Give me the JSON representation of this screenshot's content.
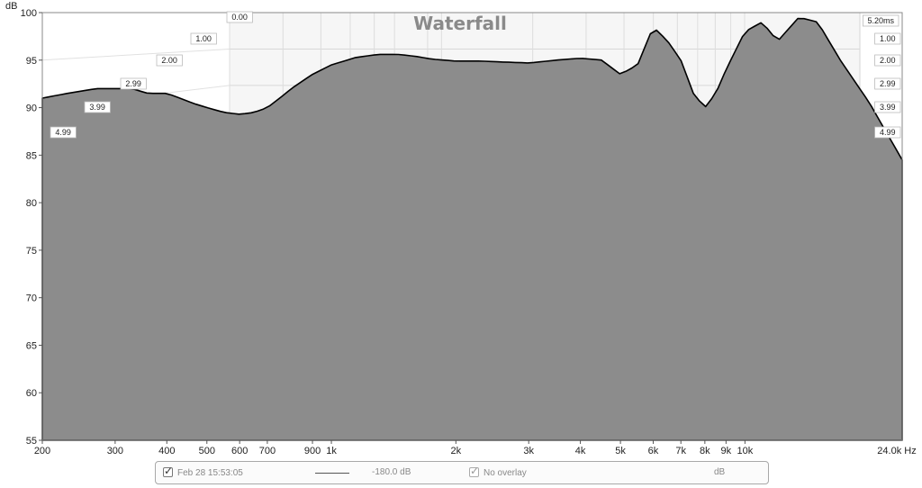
{
  "chart_data": {
    "type": "waterfall",
    "title": "Waterfall",
    "y_unit": "dB",
    "x_unit": "Hz",
    "y_ticks": [
      55,
      60,
      65,
      70,
      75,
      80,
      85,
      90,
      95,
      100
    ],
    "y_range": [
      55,
      100
    ],
    "x_ticks": [
      {
        "value": 200,
        "label": "200"
      },
      {
        "value": 300,
        "label": "300"
      },
      {
        "value": 400,
        "label": "400"
      },
      {
        "value": 500,
        "label": "500"
      },
      {
        "value": 600,
        "label": "600"
      },
      {
        "value": 700,
        "label": "700"
      },
      {
        "value": 900,
        "label": "900"
      },
      {
        "value": 1000,
        "label": "1k"
      },
      {
        "value": 2000,
        "label": "2k"
      },
      {
        "value": 3000,
        "label": "3k"
      },
      {
        "value": 4000,
        "label": "4k"
      },
      {
        "value": 5000,
        "label": "5k"
      },
      {
        "value": 6000,
        "label": "6k"
      },
      {
        "value": 7000,
        "label": "7k"
      },
      {
        "value": 8000,
        "label": "8k"
      },
      {
        "value": 9000,
        "label": "9k"
      },
      {
        "value": 10000,
        "label": "10k"
      }
    ],
    "x_end_label": "24.0k Hz",
    "x_range": [
      200,
      24000
    ],
    "x_scale": "log",
    "time_labels_left": [
      "0.00",
      "1.00",
      "2.00",
      "2.99",
      "3.99",
      "4.99"
    ],
    "time_labels_right": [
      "5.20ms",
      "1.00",
      "2.00",
      "2.99",
      "3.99",
      "4.99"
    ],
    "time_range_ms": [
      0,
      5.2
    ],
    "grid": true,
    "front_response": {
      "x": [
        200,
        230,
        270,
        300,
        330,
        360,
        400,
        430,
        460,
        500,
        550,
        600,
        650,
        700,
        750,
        800,
        900,
        1000,
        1150,
        1300,
        1450,
        1600,
        1750,
        2000,
        2300,
        2600,
        3000,
        3500,
        4000,
        4500,
        5000,
        5500,
        6000,
        6500,
        7000,
        7500,
        8000,
        8500,
        9000,
        10000,
        11000,
        12000,
        13500,
        15000,
        17000,
        20000,
        24000
      ],
      "y": [
        91.0,
        91.5,
        92.0,
        92.0,
        92.0,
        91.5,
        91.5,
        91.0,
        90.5,
        90.0,
        89.5,
        89.3,
        89.5,
        90.0,
        91.0,
        92.0,
        93.5,
        94.5,
        95.3,
        95.6,
        95.6,
        95.4,
        95.1,
        94.9,
        94.9,
        94.8,
        94.7,
        95.0,
        95.2,
        95.0,
        93.5,
        94.5,
        98.5,
        97.0,
        95.0,
        91.5,
        90.0,
        91.5,
        94.0,
        98.0,
        99.0,
        97.0,
        99.5,
        99.0,
        95.0,
        90.5,
        84.5
      ]
    }
  },
  "legend": {
    "measurement": "Feb 28 15:53:05",
    "level": "-180.0 dB",
    "overlay": "No overlay",
    "unit": "dB"
  }
}
